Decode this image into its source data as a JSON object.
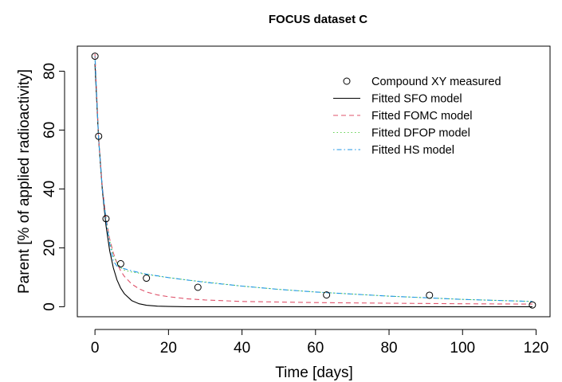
{
  "chart_data": {
    "type": "line",
    "title": "FOCUS dataset C",
    "xlabel": "Time [days]",
    "ylabel": "Parent [% of applied radioactivity]",
    "xlim": [
      -4.8,
      123.8
    ],
    "ylim": [
      -3.4,
      88.5
    ],
    "xticks": [
      0,
      20,
      40,
      60,
      80,
      100,
      120
    ],
    "yticks": [
      0,
      20,
      40,
      60,
      80
    ],
    "grid": false,
    "legend_position": "top-right",
    "observed": {
      "name": "Compound XY measured",
      "x": [
        0,
        1,
        3,
        7,
        14,
        28,
        63,
        91,
        119
      ],
      "y": [
        85.1,
        57.9,
        29.9,
        14.6,
        9.7,
        6.6,
        4.0,
        3.9,
        0.6
      ]
    },
    "series": [
      {
        "name": "Fitted SFO model",
        "color": "#000000",
        "dash": "solid",
        "x": [
          0,
          1,
          2,
          3,
          4,
          5,
          6,
          7,
          8,
          10,
          12,
          14,
          17,
          20,
          25,
          30,
          40,
          50,
          60,
          80,
          100,
          119
        ],
        "y": [
          82.5,
          57.0,
          39.6,
          27.5,
          19.0,
          13.2,
          9.1,
          6.3,
          4.4,
          2.1,
          1.0,
          0.5,
          0.2,
          0.1,
          0.0,
          0.0,
          0.0,
          0.0,
          0.0,
          0.0,
          0.0,
          0.0
        ]
      },
      {
        "name": "Fitted FOMC model",
        "color": "#df536b",
        "dash": "dashed",
        "x": [
          0,
          1,
          2,
          3,
          4,
          5,
          6,
          7,
          8,
          10,
          12,
          14,
          17,
          20,
          25,
          30,
          40,
          50,
          60,
          80,
          100,
          119
        ],
        "y": [
          85.9,
          57.4,
          40.6,
          30.0,
          23.0,
          18.2,
          14.8,
          12.2,
          10.3,
          7.7,
          6.1,
          5.0,
          4.0,
          3.4,
          2.7,
          2.3,
          1.8,
          1.6,
          1.4,
          1.2,
          1.0,
          0.9
        ]
      },
      {
        "name": "Fitted DFOP model",
        "color": "#61d04f",
        "dash": "dotted",
        "x": [
          0,
          1,
          2,
          3,
          4,
          5,
          6,
          7,
          8,
          10,
          12,
          14,
          17,
          20,
          25,
          30,
          40,
          50,
          60,
          80,
          100,
          119
        ],
        "y": [
          85.0,
          57.0,
          40.0,
          29.9,
          22.4,
          17.3,
          14.9,
          13.3,
          12.4,
          11.8,
          11.4,
          11.0,
          10.4,
          9.9,
          9.1,
          8.4,
          7.0,
          5.9,
          5.0,
          3.6,
          2.5,
          1.8
        ]
      },
      {
        "name": "Fitted HS model",
        "color": "#2297e6",
        "dash": "dotdash",
        "x": [
          0,
          1,
          2,
          3,
          4,
          5,
          6,
          7,
          8,
          10,
          12,
          14,
          17,
          20,
          25,
          30,
          40,
          50,
          60,
          80,
          100,
          119
        ],
        "y": [
          85.0,
          57.0,
          40.0,
          29.5,
          21.5,
          15.5,
          13.8,
          13.3,
          12.9,
          12.2,
          11.6,
          11.1,
          10.5,
          9.9,
          9.1,
          8.3,
          7.0,
          5.9,
          5.0,
          3.6,
          2.5,
          1.8
        ]
      }
    ]
  }
}
